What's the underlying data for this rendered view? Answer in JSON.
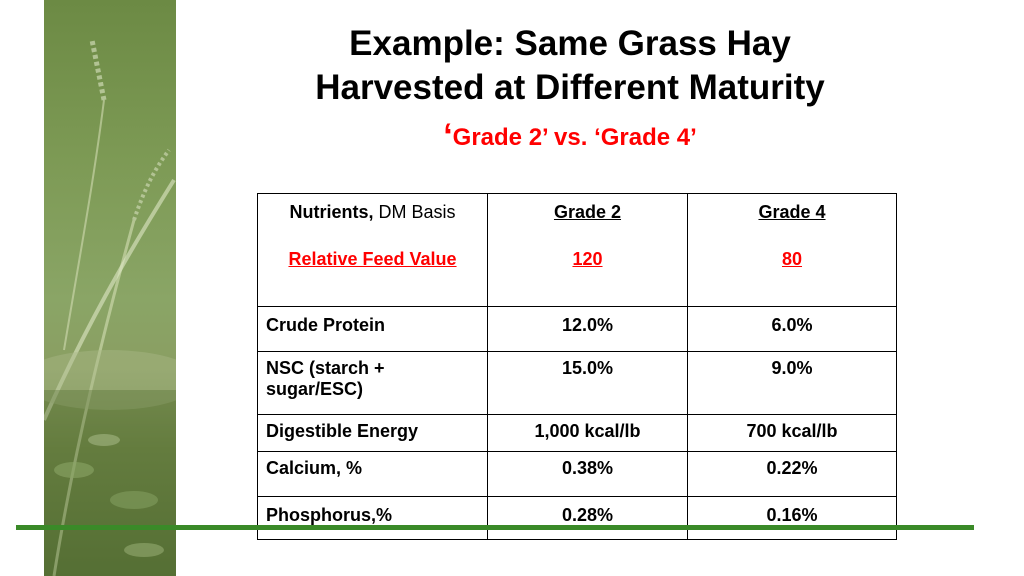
{
  "slide": {
    "title_line1": "Example: Same Grass Hay",
    "title_line2": "Harvested at Different Maturity",
    "subtitle_quote": "‘",
    "subtitle": "Grade 2’ vs. ‘Grade 4’"
  },
  "table": {
    "header": {
      "nutrients_bold": "Nutrients,",
      "nutrients_rest": " DM Basis",
      "grade2": "Grade 2",
      "grade4": "Grade 4",
      "rfv_label": "Relative Feed Value",
      "rfv_grade2": "120",
      "rfv_grade4": "80"
    },
    "rows": [
      {
        "nutrient": "Crude Protein",
        "grade2": "12.0%",
        "grade4": "6.0%"
      },
      {
        "nutrient": "NSC  (starch + sugar/ESC)",
        "grade2": "15.0%",
        "grade4": "9.0%"
      },
      {
        "nutrient": "Digestible Energy",
        "grade2": "1,000 kcal/lb",
        "grade4": "700 kcal/lb"
      },
      {
        "nutrient": "Calcium, %",
        "grade2": "0.38%",
        "grade4": "0.22%"
      },
      {
        "nutrient": "Phosphorus,%",
        "grade2": "0.28%",
        "grade4": "0.16%"
      }
    ]
  },
  "colors": {
    "accent_red": "#ff0000",
    "rule_green": "#3a8a28",
    "sidebar_green": "#7d9a55"
  }
}
